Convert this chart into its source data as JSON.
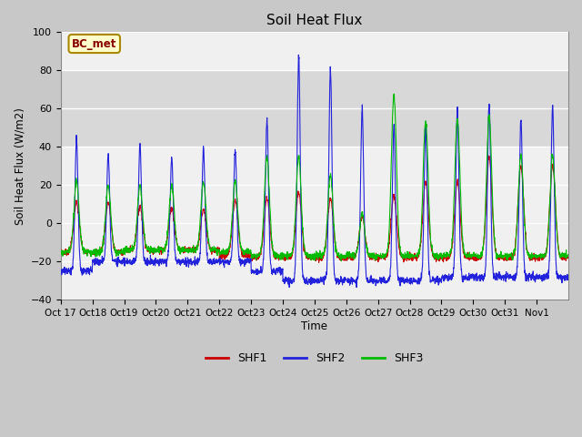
{
  "title": "Soil Heat Flux",
  "ylabel": "Soil Heat Flux (W/m2)",
  "xlabel": "Time",
  "ylim": [
    -40,
    100
  ],
  "yticks": [
    -40,
    -20,
    0,
    20,
    40,
    60,
    80,
    100
  ],
  "shaded_band": [
    40,
    80
  ],
  "colors": {
    "SHF1": "#cc0000",
    "SHF2": "#2222dd",
    "SHF3": "#00bb00"
  },
  "annotation_text": "BC_met",
  "annotation_color": "#880000",
  "annotation_bg": "#ffffcc",
  "fig_bg": "#c8c8c8",
  "plot_bg": "#f0f0f0",
  "grid_color": "#ffffff",
  "n_days": 16,
  "xtick_labels": [
    "Oct 17",
    "Oct 18",
    "Oct 19",
    "Oct 20",
    "Oct 21",
    "Oct 22",
    "Oct 23",
    "Oct 24",
    "Oct 25",
    "Oct 26",
    "Oct 27",
    "Oct 28",
    "Oct 29",
    "Oct 30",
    "Oct 31",
    "Nov 1"
  ],
  "shf2_peaks": [
    44,
    35,
    41,
    34,
    39,
    38,
    55,
    87,
    81,
    60,
    51,
    50,
    59,
    63,
    55,
    61
  ],
  "shf3_peaks": [
    22,
    20,
    20,
    20,
    22,
    22,
    35,
    35,
    25,
    5,
    67,
    53,
    55,
    56,
    35,
    35
  ],
  "shf1_peaks": [
    11,
    11,
    9,
    8,
    7,
    12,
    13,
    17,
    13,
    4,
    15,
    22,
    22,
    35,
    30,
    30
  ],
  "shf1_nights": [
    -15,
    -15,
    -14,
    -14,
    -14,
    -17,
    -18,
    -18,
    -18,
    -18,
    -18,
    -18,
    -18,
    -18,
    -18,
    -18
  ],
  "shf2_nights": [
    -25,
    -20,
    -20,
    -20,
    -20,
    -20,
    -25,
    -30,
    -30,
    -30,
    -30,
    -30,
    -28,
    -28,
    -28,
    -28
  ],
  "shf3_nights": [
    -15,
    -15,
    -14,
    -14,
    -14,
    -15,
    -17,
    -17,
    -17,
    -17,
    -17,
    -17,
    -17,
    -17,
    -17,
    -17
  ],
  "pts_per_day": 144
}
